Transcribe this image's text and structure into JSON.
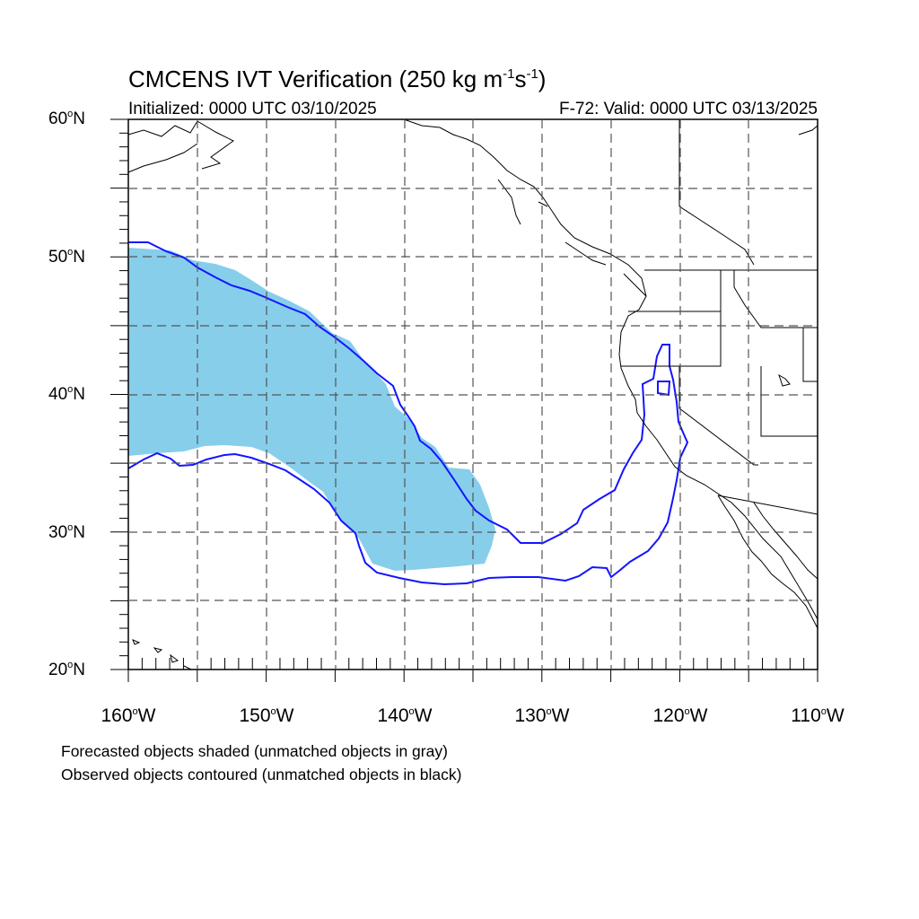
{
  "title": {
    "prefix": "CMCENS IVT Verification (250 kg m",
    "exp1": "-1",
    "mid": "s",
    "exp2": "-1",
    "suffix": ")"
  },
  "subtitle_left": "Initialized: 0000 UTC 03/10/2025",
  "subtitle_right": "F-72: Valid: 0000 UTC 03/13/2025",
  "map_extent": {
    "lon_min": -160,
    "lon_max": -110,
    "lat_min": 20,
    "lat_max": 60
  },
  "lat_labels": [
    {
      "value": "60",
      "suffix": "N"
    },
    {
      "value": "50",
      "suffix": "N"
    },
    {
      "value": "40",
      "suffix": "N"
    },
    {
      "value": "30",
      "suffix": "N"
    },
    {
      "value": "20",
      "suffix": "N"
    }
  ],
  "lon_labels": [
    {
      "value": "160",
      "suffix": "W"
    },
    {
      "value": "150",
      "suffix": "W"
    },
    {
      "value": "140",
      "suffix": "W"
    },
    {
      "value": "130",
      "suffix": "W"
    },
    {
      "value": "120",
      "suffix": "W"
    },
    {
      "value": "110",
      "suffix": "W"
    }
  ],
  "footnotes": [
    "Forecasted objects shaded (unmatched objects in gray)",
    "Observed objects contoured (unmatched objects in black)"
  ],
  "colors": {
    "forecast_fill": "#87ceeb",
    "observed_contour": "#1414ff",
    "grid": "#555555",
    "coastline": "#000000"
  },
  "legend_symbols": {
    "degree_symbol": "o"
  }
}
